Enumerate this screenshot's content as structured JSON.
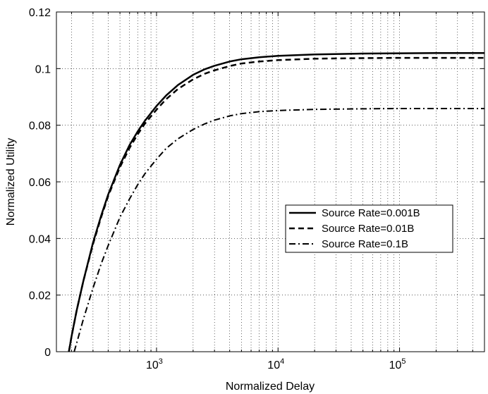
{
  "chart_data": {
    "type": "line",
    "title": "",
    "xlabel": "Normalized Delay",
    "ylabel": "Normalized Utility",
    "xscale": "log",
    "xlim": [
      150,
      500000
    ],
    "ylim": [
      0,
      0.12
    ],
    "x_ticks": [
      {
        "value": 1000,
        "base": "10",
        "exp": "3"
      },
      {
        "value": 10000,
        "base": "10",
        "exp": "4"
      },
      {
        "value": 100000,
        "base": "10",
        "exp": "5"
      }
    ],
    "y_ticks": [
      {
        "value": 0,
        "label": "0"
      },
      {
        "value": 0.02,
        "label": "0.02"
      },
      {
        "value": 0.04,
        "label": "0.04"
      },
      {
        "value": 0.06,
        "label": "0.06"
      },
      {
        "value": 0.08,
        "label": "0.08"
      },
      {
        "value": 0.1,
        "label": "0.1"
      },
      {
        "value": 0.12,
        "label": "0.12"
      }
    ],
    "grid": true,
    "legend_position": "center-right",
    "series": [
      {
        "name": "Source Rate=0.001B",
        "style": "solid",
        "color": "#000000",
        "x": [
          190,
          200,
          220,
          250,
          300,
          350,
          400,
          500,
          600,
          700,
          800,
          1000,
          1200,
          1500,
          2000,
          2500,
          3000,
          4000,
          5000,
          7000,
          10000,
          20000,
          50000,
          100000,
          200000,
          500000
        ],
        "y": [
          0,
          0.0055,
          0.0145,
          0.025,
          0.0385,
          0.048,
          0.0555,
          0.066,
          0.073,
          0.0778,
          0.0815,
          0.0868,
          0.0905,
          0.0942,
          0.0978,
          0.0998,
          0.101,
          0.1025,
          0.1033,
          0.104,
          0.1045,
          0.105,
          0.1053,
          0.1054,
          0.1055,
          0.1055
        ]
      },
      {
        "name": "Source Rate=0.01B",
        "style": "dashed",
        "color": "#000000",
        "x": [
          190,
          200,
          220,
          250,
          300,
          350,
          400,
          500,
          600,
          700,
          800,
          1000,
          1200,
          1500,
          2000,
          2500,
          3000,
          4000,
          5000,
          7000,
          10000,
          20000,
          50000,
          100000,
          200000,
          500000
        ],
        "y": [
          0,
          0.0055,
          0.0145,
          0.025,
          0.038,
          0.0475,
          0.055,
          0.0652,
          0.072,
          0.0768,
          0.0805,
          0.0855,
          0.0892,
          0.0928,
          0.0962,
          0.0982,
          0.0994,
          0.1009,
          0.1018,
          0.1025,
          0.103,
          0.1035,
          0.1037,
          0.1038,
          0.1038,
          0.1038
        ]
      },
      {
        "name": "Source Rate=0.1B",
        "style": "dashdot",
        "color": "#000000",
        "x": [
          210,
          220,
          250,
          300,
          350,
          400,
          500,
          600,
          700,
          800,
          1000,
          1200,
          1500,
          2000,
          2500,
          3000,
          4000,
          5000,
          7000,
          10000,
          20000,
          50000,
          100000,
          200000,
          500000
        ],
        "y": [
          0,
          0.003,
          0.0115,
          0.0225,
          0.031,
          0.0375,
          0.0475,
          0.054,
          0.059,
          0.0628,
          0.068,
          0.0718,
          0.0752,
          0.0785,
          0.0805,
          0.0818,
          0.0833,
          0.0841,
          0.0848,
          0.0852,
          0.0856,
          0.0858,
          0.0859,
          0.0859,
          0.0859
        ]
      }
    ]
  }
}
